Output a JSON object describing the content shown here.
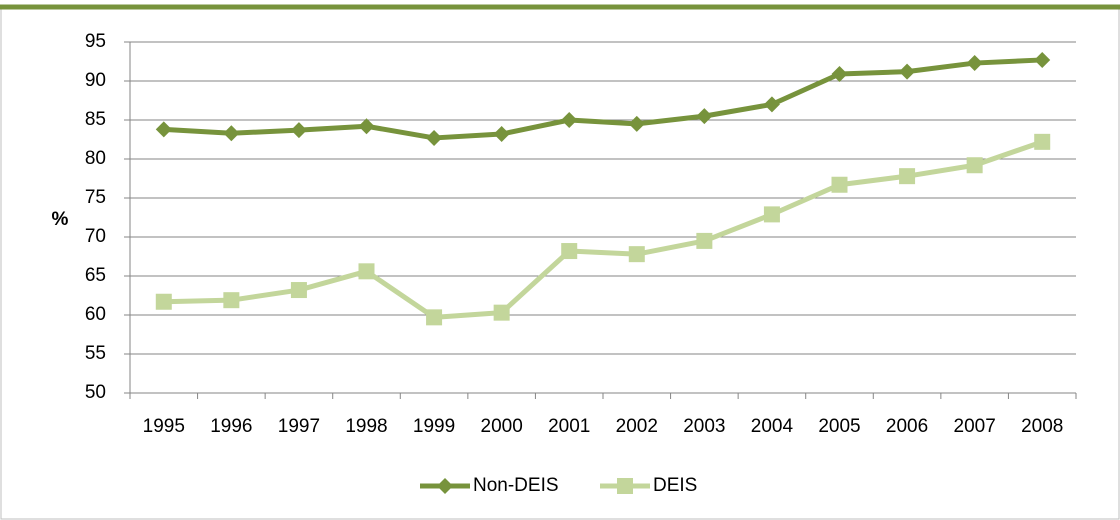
{
  "chart_data": {
    "type": "line",
    "y_label": "%",
    "categories": [
      "1995",
      "1996",
      "1997",
      "1998",
      "1999",
      "2000",
      "2001",
      "2002",
      "2003",
      "2004",
      "2005",
      "2006",
      "2007",
      "2008"
    ],
    "series": [
      {
        "name": "Non-DEIS",
        "color": "#77933c",
        "marker": "diamond",
        "values": [
          83.8,
          83.3,
          83.7,
          84.2,
          82.7,
          83.2,
          85.0,
          84.5,
          85.5,
          87.0,
          90.9,
          91.2,
          92.3,
          92.7
        ]
      },
      {
        "name": "DEIS",
        "color": "#c3d69b",
        "marker": "square",
        "values": [
          61.7,
          61.9,
          63.2,
          65.6,
          59.7,
          60.3,
          68.2,
          67.8,
          69.5,
          72.9,
          76.7,
          77.8,
          79.2,
          82.2
        ]
      }
    ],
    "ylim": [
      50,
      95
    ],
    "yticks": [
      50,
      55,
      60,
      65,
      70,
      75,
      80,
      85,
      90,
      95
    ],
    "grid": true,
    "legend": "bottom"
  }
}
